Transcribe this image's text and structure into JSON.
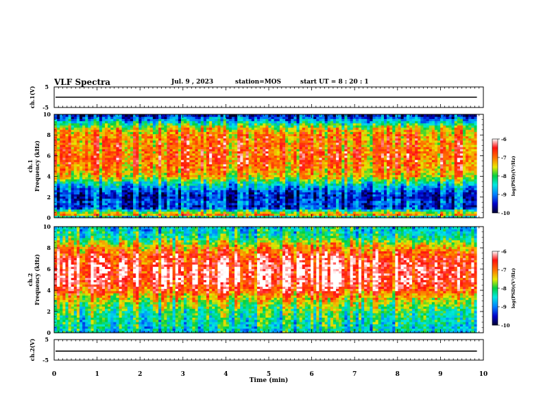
{
  "header": {
    "title": "VLF Spectra",
    "date": "Jul. 9 , 2023",
    "station": "station=MOS",
    "start_ut": "start UT =  8 : 20 : 1"
  },
  "chart_data": [
    {
      "type": "line",
      "ylabel": "ch.1(V)",
      "ylim": [
        -5,
        5
      ],
      "yticks": [
        "5",
        "-5"
      ],
      "xlim": [
        0,
        10
      ],
      "series_value": 0,
      "color": "#000000"
    },
    {
      "type": "heatmap",
      "ylabel": "ch.1\nFrequency  (kHz)",
      "ylim": [
        0,
        10
      ],
      "yticks": [
        "0",
        "2",
        "4",
        "6",
        "8",
        "10"
      ],
      "xlim": [
        0,
        9.85
      ],
      "colorbar": {
        "label": "log(PSD)(V²/Hz)",
        "range": [
          -10,
          -6
        ],
        "ticks": [
          "-6",
          "-7",
          "-8",
          "-9",
          "-10"
        ]
      },
      "band_profile_khz": [
        0,
        0.3,
        0.6,
        1.0,
        1.5,
        2.0,
        2.5,
        3.0,
        3.5,
        4.0,
        5.0,
        6.0,
        7.0,
        8.0,
        8.5,
        9.0,
        9.5,
        10.0
      ],
      "level_profile": [
        -9.0,
        -7.2,
        -7.8,
        -9.4,
        -9.2,
        -9.5,
        -9.3,
        -8.8,
        -8.2,
        -7.4,
        -7.0,
        -6.9,
        -7.0,
        -7.1,
        -7.3,
        -8.0,
        -8.9,
        -9.6
      ]
    },
    {
      "type": "heatmap",
      "ylabel": "ch.2\nFrequency  (kHz)",
      "ylim": [
        0,
        10
      ],
      "yticks": [
        "0",
        "2",
        "4",
        "6",
        "8",
        "10"
      ],
      "xlim": [
        0,
        9.85
      ],
      "colorbar": {
        "label": "log(PSD)(V²/Hz)",
        "range": [
          -10,
          -6
        ],
        "ticks": [
          "-6",
          "-7",
          "-8",
          "-9",
          "-10"
        ]
      },
      "band_profile_khz": [
        0,
        0.5,
        1.0,
        1.5,
        2.0,
        2.5,
        3.0,
        3.5,
        4.0,
        5.0,
        6.0,
        7.0,
        7.5,
        8.0,
        8.5,
        9.0,
        9.5,
        10.0
      ],
      "level_profile": [
        -8.5,
        -8.4,
        -8.3,
        -8.2,
        -8.1,
        -7.8,
        -7.6,
        -7.2,
        -6.7,
        -6.3,
        -6.3,
        -6.5,
        -6.8,
        -7.1,
        -7.6,
        -8.2,
        -8.4,
        -8.5
      ]
    },
    {
      "type": "line",
      "ylabel": "ch.2(V)",
      "ylim": [
        -5,
        5
      ],
      "yticks": [
        "5",
        "-5"
      ],
      "xlim": [
        0,
        10
      ],
      "series_value": -0.6,
      "color": "#000000"
    }
  ],
  "xaxis": {
    "label": "Time  (min)",
    "ticks": [
      "0",
      "1",
      "2",
      "3",
      "4",
      "5",
      "6",
      "7",
      "8",
      "9",
      "10"
    ]
  }
}
